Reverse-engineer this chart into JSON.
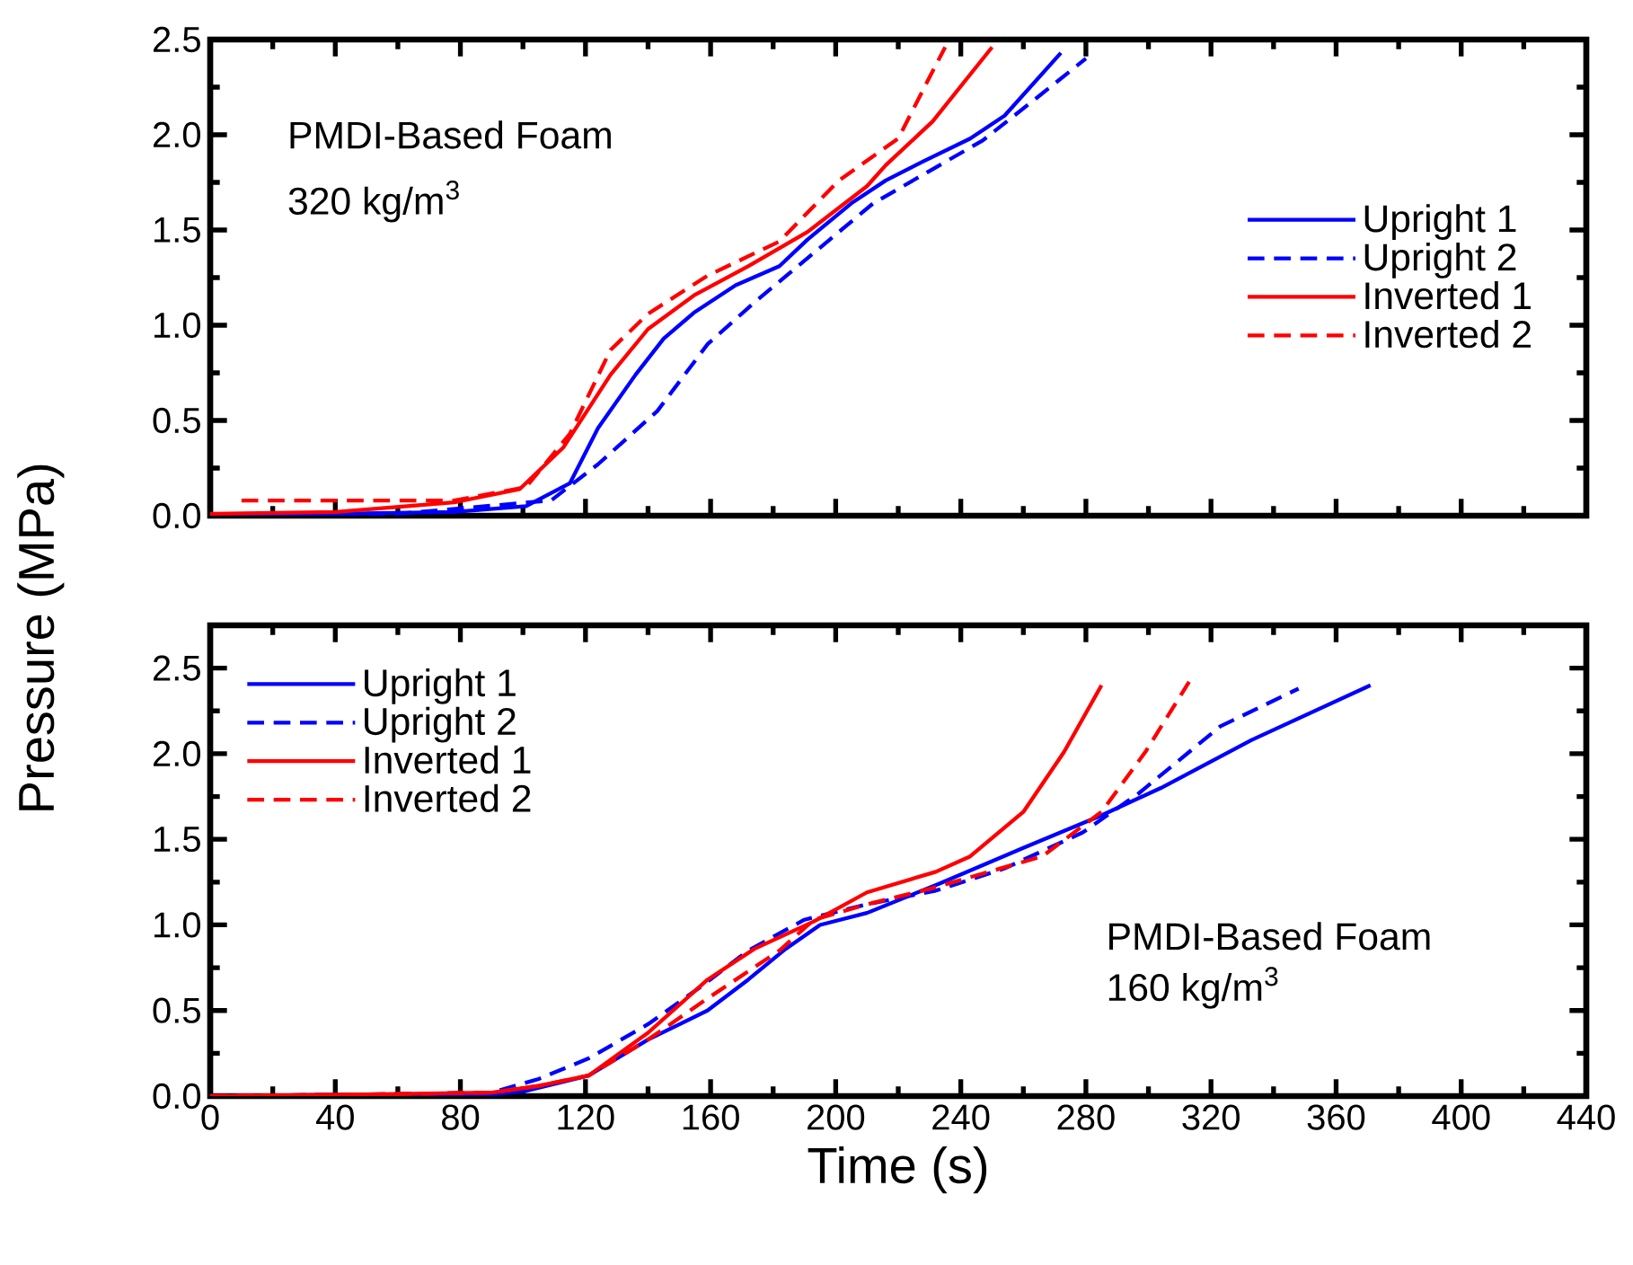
{
  "chart_data": [
    {
      "type": "line",
      "ylabel": "Pressure (MPa)",
      "xlim": [
        0,
        440
      ],
      "ylim": [
        0,
        2.5
      ],
      "xticks": [
        0,
        40,
        80,
        120,
        160,
        200,
        240,
        280,
        320,
        360,
        400,
        440
      ],
      "yticks": [
        {
          "value": 0,
          "label": "0.0"
        },
        0.5,
        {
          "value": 1,
          "label": "1.0"
        },
        1.5,
        {
          "value": 2,
          "label": "2.0"
        },
        2.5
      ],
      "tick_labels": "y",
      "legend": "right",
      "annotations": [
        "PMDI-Based Foam",
        "320 kg/m$^{3}$"
      ],
      "series": [
        {
          "name": "Upright 1",
          "color": "#0000ff",
          "line_style": "solid",
          "x": [
            0,
            40,
            78,
            101,
            115,
            124,
            136,
            145,
            155,
            168,
            182,
            191,
            205,
            216,
            228,
            243,
            254,
            272
          ],
          "values": [
            0,
            0.01,
            0.02,
            0.05,
            0.17,
            0.46,
            0.74,
            0.93,
            1.07,
            1.21,
            1.31,
            1.45,
            1.64,
            1.76,
            1.86,
            1.98,
            2.1,
            2.43
          ]
        },
        {
          "name": "Upright 2",
          "color": "#0000ff",
          "line_style": "dashed",
          "x": [
            0,
            60,
            109,
            124,
            143,
            159,
            174,
            193,
            212,
            230,
            247,
            264,
            280
          ],
          "values": [
            0,
            0.01,
            0.08,
            0.27,
            0.55,
            0.9,
            1.12,
            1.38,
            1.64,
            1.81,
            1.97,
            2.19,
            2.4
          ]
        },
        {
          "name": "Inverted 1",
          "color": "#ff0000",
          "line_style": "solid",
          "x": [
            0,
            40,
            78,
            99,
            113,
            128,
            140,
            155,
            172,
            191,
            210,
            216,
            231,
            250
          ],
          "values": [
            0.01,
            0.02,
            0.07,
            0.14,
            0.36,
            0.74,
            0.98,
            1.16,
            1.31,
            1.49,
            1.73,
            1.84,
            2.07,
            2.46
          ]
        },
        {
          "name": "Inverted 2",
          "color": "#ff0000",
          "line_style": "dashed",
          "x": [
            10,
            78,
            101,
            115,
            128,
            140,
            159,
            182,
            201,
            220,
            229,
            235
          ],
          "values": [
            0.08,
            0.08,
            0.15,
            0.43,
            0.87,
            1.06,
            1.26,
            1.44,
            1.76,
            1.98,
            2.27,
            2.46
          ]
        }
      ]
    },
    {
      "type": "line",
      "xlabel": "Time (s)",
      "xlim": [
        0,
        440
      ],
      "ylim": [
        0,
        2.75
      ],
      "xticks": [
        0,
        40,
        80,
        120,
        160,
        200,
        240,
        280,
        320,
        360,
        400,
        440
      ],
      "yticks": [
        {
          "value": 0,
          "label": "0.0"
        },
        0.5,
        {
          "value": 1,
          "label": "1.0"
        },
        1.5,
        {
          "value": 2,
          "label": "2.0"
        },
        2.5
      ],
      "legend": "top left",
      "annotations": [
        "PMDI-Based Foam",
        "160 kg/m$^{3}$"
      ],
      "series": [
        {
          "name": "Upright 1",
          "color": "#0000ff",
          "line_style": "solid",
          "x": [
            0,
            50,
            90,
            101,
            121,
            140,
            159,
            172,
            184,
            195,
            210,
            233,
            260,
            285,
            304,
            333,
            371
          ],
          "values": [
            0,
            0.01,
            0.01,
            0.03,
            0.12,
            0.33,
            0.5,
            0.68,
            0.86,
            1.0,
            1.07,
            1.24,
            1.45,
            1.64,
            1.8,
            2.08,
            2.4
          ]
        },
        {
          "name": "Upright 2",
          "color": "#0000ff",
          "line_style": "dashed",
          "x": [
            0,
            50,
            90,
            105,
            121,
            140,
            157,
            172,
            190,
            210,
            232,
            254,
            279,
            297,
            323,
            348
          ],
          "values": [
            0,
            0.01,
            0.02,
            0.1,
            0.22,
            0.42,
            0.64,
            0.85,
            1.03,
            1.12,
            1.2,
            1.33,
            1.54,
            1.77,
            2.16,
            2.38
          ]
        },
        {
          "name": "Inverted 1",
          "color": "#ff0000",
          "line_style": "solid",
          "x": [
            0,
            50,
            90,
            105,
            121,
            140,
            159,
            174,
            193,
            210,
            232,
            243,
            260,
            273,
            285
          ],
          "values": [
            0,
            0.01,
            0.02,
            0.06,
            0.12,
            0.37,
            0.68,
            0.86,
            1.02,
            1.19,
            1.31,
            1.4,
            1.66,
            2.01,
            2.4
          ]
        },
        {
          "name": "Inverted 2",
          "color": "#ff0000",
          "line_style": "dashed",
          "x": [
            0,
            50,
            90,
            105,
            121,
            140,
            159,
            182,
            193,
            210,
            230,
            266,
            285,
            299,
            313
          ],
          "values": [
            0,
            0.01,
            0.02,
            0.06,
            0.12,
            0.33,
            0.57,
            0.85,
            1.03,
            1.12,
            1.21,
            1.4,
            1.66,
            2.01,
            2.42
          ]
        }
      ]
    }
  ]
}
